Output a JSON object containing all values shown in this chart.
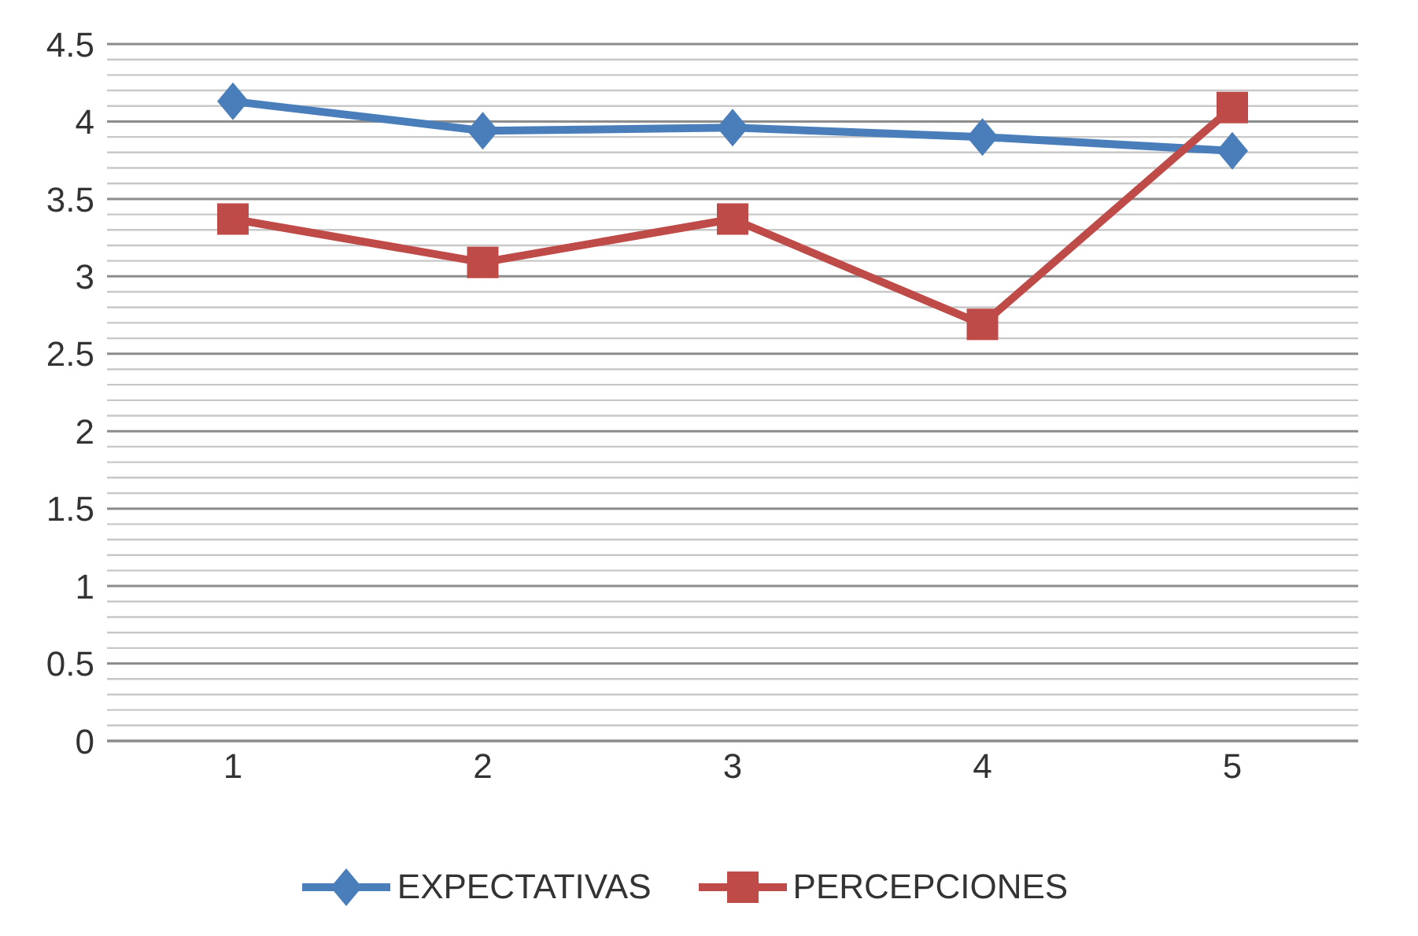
{
  "chart_data": {
    "type": "line",
    "categories": [
      "1",
      "2",
      "3",
      "4",
      "5"
    ],
    "series": [
      {
        "name": "EXPECTATIVAS",
        "color": "#4a7ebb",
        "values": [
          4.13,
          3.94,
          3.96,
          3.9,
          3.81
        ],
        "marker": "diamond"
      },
      {
        "name": "PERCEPCIONES",
        "color": "#be4b48",
        "values": [
          3.37,
          3.09,
          3.37,
          2.69,
          4.09
        ],
        "marker": "square"
      }
    ],
    "ylim": [
      0,
      4.5
    ],
    "yticks": [
      0,
      {
        "value": 0.1,
        "label": null
      },
      {
        "value": 0.2,
        "label": null
      },
      {
        "value": 0.3,
        "label": null
      },
      {
        "value": 0.4,
        "label": null
      },
      0.5,
      {
        "value": 0.6,
        "label": null
      },
      {
        "value": 0.7,
        "label": null
      },
      {
        "value": 0.8,
        "label": null
      },
      {
        "value": 0.9,
        "label": null
      },
      1,
      {
        "value": 1.1,
        "label": null
      },
      {
        "value": 1.2,
        "label": null
      },
      {
        "value": 1.3,
        "label": null
      },
      {
        "value": 1.4,
        "label": null
      },
      1.5,
      {
        "value": 1.6,
        "label": null
      },
      {
        "value": 1.7,
        "label": null
      },
      {
        "value": 1.8,
        "label": null
      },
      {
        "value": 1.9,
        "label": null
      },
      2,
      {
        "value": 2.1,
        "label": null
      },
      {
        "value": 2.2,
        "label": null
      },
      {
        "value": 2.3,
        "label": null
      },
      {
        "value": 2.4,
        "label": null
      },
      2.5,
      {
        "value": 2.6,
        "label": null
      },
      {
        "value": 2.7,
        "label": null
      },
      {
        "value": 2.8,
        "label": null
      },
      {
        "value": 2.9,
        "label": null
      },
      3,
      {
        "value": 3.1,
        "label": null
      },
      {
        "value": 3.2,
        "label": null
      },
      {
        "value": 3.3,
        "label": null
      },
      {
        "value": 3.4,
        "label": null
      },
      3.5,
      {
        "value": 3.6,
        "label": null
      },
      {
        "value": 3.7,
        "label": null
      },
      {
        "value": 3.8,
        "label": null
      },
      {
        "value": 3.9,
        "label": null
      },
      4,
      {
        "value": 4.1,
        "label": null
      },
      {
        "value": 4.2,
        "label": null
      },
      {
        "value": 4.3,
        "label": null
      },
      {
        "value": 4.4,
        "label": null
      },
      4.5
    ],
    "grid": "y",
    "legend": "bottom",
    "line_style": "solid"
  }
}
